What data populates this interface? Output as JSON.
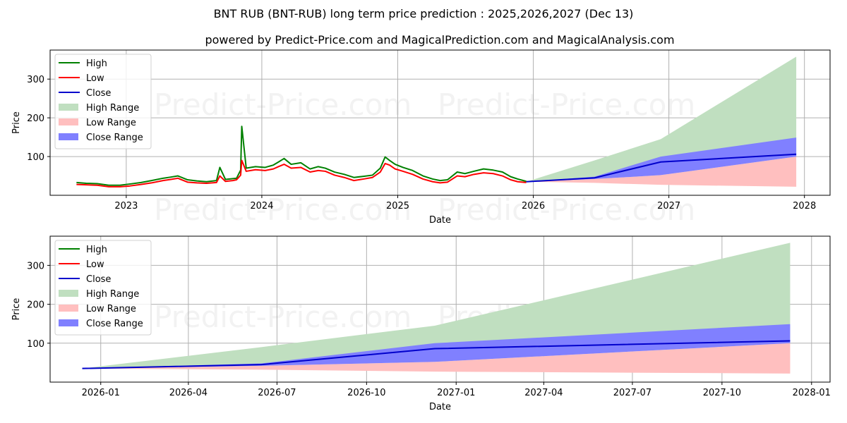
{
  "title": "BNT RUB (BNT-RUB) long term price prediction : 2025,2026,2027 (Dec 13)",
  "subtitle": "powered by Predict-Price.com and MagicalPrediction.com and MagicalAnalysis.com",
  "watermark": "Predict-Price.com",
  "colors": {
    "high": "#008000",
    "low": "#ff0000",
    "close": "#0000cc",
    "high_range": "#c0dfc0",
    "low_range": "#ffbfbf",
    "close_range": "#8080ff",
    "grid": "#b0b0b0"
  },
  "legend": [
    {
      "label": "High",
      "type": "line",
      "key": "high"
    },
    {
      "label": "Low",
      "type": "line",
      "key": "low"
    },
    {
      "label": "Close",
      "type": "line",
      "key": "close"
    },
    {
      "label": "High Range",
      "type": "patch",
      "key": "high_range"
    },
    {
      "label": "Low Range",
      "type": "patch",
      "key": "low_range"
    },
    {
      "label": "Close Range",
      "type": "patch",
      "key": "close_range"
    }
  ],
  "chart_data": [
    {
      "type": "line",
      "title": "BNT RUB (BNT-RUB) long term price prediction : 2025,2026,2027 (Dec 13)",
      "xlabel": "Date",
      "ylabel": "Price",
      "ylim": [
        0,
        375
      ],
      "xlim": [
        "2022-06-10",
        "2028-03-10"
      ],
      "yticks": [
        100,
        200,
        300
      ],
      "xticks": [
        "2023",
        "2024",
        "2025",
        "2026",
        "2027",
        "2028"
      ],
      "grid": true,
      "legend_position": "upper left",
      "historical": {
        "dates": [
          "2022-08-20",
          "2022-09-15",
          "2022-10-15",
          "2022-11-15",
          "2022-12-15",
          "2023-01-10",
          "2023-02-10",
          "2023-03-10",
          "2023-04-10",
          "2023-05-01",
          "2023-05-20",
          "2023-06-15",
          "2023-07-10",
          "2023-08-05",
          "2023-09-01",
          "2023-09-10",
          "2023-09-25",
          "2023-10-15",
          "2023-10-25",
          "2023-11-05",
          "2023-11-08",
          "2023-11-20",
          "2023-12-15",
          "2024-01-10",
          "2024-02-01",
          "2024-02-15",
          "2024-03-01",
          "2024-03-20",
          "2024-04-15",
          "2024-05-10",
          "2024-06-01",
          "2024-06-20",
          "2024-07-15",
          "2024-08-10",
          "2024-09-05",
          "2024-10-01",
          "2024-10-25",
          "2024-11-15",
          "2024-11-28",
          "2024-12-10",
          "2024-12-25",
          "2025-01-15",
          "2025-02-10",
          "2025-03-10",
          "2025-04-05",
          "2025-04-25",
          "2025-05-15",
          "2025-06-10",
          "2025-07-01",
          "2025-07-25",
          "2025-08-20",
          "2025-09-15",
          "2025-10-10",
          "2025-11-01",
          "2025-11-20",
          "2025-12-13"
        ],
        "high": [
          33,
          31,
          30,
          26,
          26,
          29,
          33,
          38,
          44,
          47,
          50,
          40,
          37,
          35,
          38,
          72,
          41,
          43,
          44,
          65,
          178,
          70,
          74,
          72,
          78,
          86,
          95,
          80,
          84,
          68,
          74,
          70,
          60,
          54,
          46,
          49,
          52,
          70,
          99,
          90,
          80,
          72,
          64,
          50,
          42,
          38,
          40,
          60,
          56,
          62,
          68,
          65,
          60,
          48,
          42,
          36
        ],
        "low": [
          28,
          27,
          26,
          22,
          22,
          24,
          28,
          32,
          38,
          41,
          44,
          34,
          32,
          31,
          33,
          50,
          36,
          38,
          40,
          52,
          90,
          62,
          66,
          64,
          68,
          74,
          80,
          70,
          72,
          60,
          64,
          62,
          52,
          46,
          38,
          42,
          46,
          60,
          82,
          78,
          68,
          62,
          54,
          42,
          35,
          32,
          34,
          50,
          48,
          54,
          58,
          56,
          50,
          40,
          35,
          33
        ],
        "close": [
          30,
          29,
          28,
          24,
          24,
          26,
          30,
          35,
          41,
          44,
          47,
          37,
          34,
          33,
          35,
          55,
          38,
          40,
          42,
          56,
          120,
          66,
          70,
          68,
          72,
          78,
          86,
          74,
          76,
          64,
          68,
          66,
          56,
          50,
          42,
          45,
          49,
          64,
          88,
          82,
          72,
          66,
          58,
          46,
          38,
          35,
          37,
          54,
          52,
          58,
          62,
          60,
          54,
          44,
          38,
          35
        ]
      },
      "forecast": {
        "dates": [
          "2025-12-13",
          "2026-06-15",
          "2026-12-10",
          "2027-12-10"
        ],
        "close": [
          35,
          45,
          86,
          106
        ],
        "high_range_upper": [
          35,
          90,
          145,
          358
        ],
        "high_range_lower": [
          35,
          45,
          86,
          106
        ],
        "close_range_upper": [
          35,
          48,
          100,
          149
        ],
        "close_range_lower": [
          35,
          42,
          52,
          100
        ],
        "low_range_upper": [
          35,
          42,
          52,
          100
        ],
        "low_range_lower": [
          35,
          32,
          27,
          22
        ]
      }
    },
    {
      "type": "line",
      "xlabel": "Date",
      "ylabel": "Price",
      "ylim": [
        0,
        375
      ],
      "xlim": [
        "2025-11-10",
        "2028-01-20"
      ],
      "yticks": [
        100,
        200,
        300
      ],
      "xticks": [
        "2026-01",
        "2026-04",
        "2026-07",
        "2026-10",
        "2027-01",
        "2027-04",
        "2027-07",
        "2027-10",
        "2028-01"
      ],
      "grid": true,
      "legend_position": "upper left",
      "forecast_ref": "same forecast series as chart 1"
    }
  ]
}
